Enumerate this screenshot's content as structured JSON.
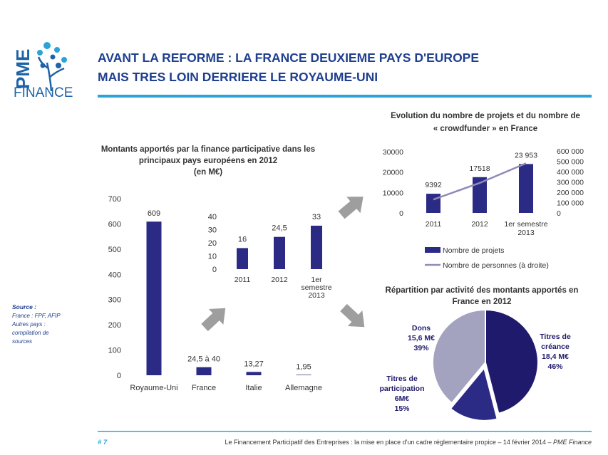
{
  "logo": {
    "line1": "PME",
    "line2": "FINANCE"
  },
  "title": {
    "line1": "AVANT LA REFORME : LA FRANCE DEUXIEME PAYS D'EUROPE",
    "line2": "MAIS TRES LOIN DERRIERE LE ROYAUME-UNI"
  },
  "source": {
    "label": "Source :",
    "lines": [
      "France : FPF, AFIP",
      "Autres pays :",
      "compilation de",
      "sources"
    ]
  },
  "footer": {
    "page": "# 7",
    "text": "Le Financement Participatif des Entreprises : la mise en place d'un cadre réglementaire propice – 14 février 2014 – ",
    "brand": "PME Finance"
  },
  "colors": {
    "accent": "#2aa3d8",
    "title": "#1f3f8f",
    "bar": "#2b2a85",
    "line": "#8f8bb8",
    "pie_dark": "#1f1a6b",
    "pie_mid": "#2b2a85",
    "pie_light": "#a3a2bf",
    "arrow": "#9e9e9e"
  },
  "chart_data": [
    {
      "type": "bar",
      "title_lines": [
        "Montants apportés par la finance participative dans les",
        "principaux pays européens en 2012",
        "(en M€)"
      ],
      "categories": [
        "Royaume-Uni",
        "France",
        "Italie",
        "Allemagne"
      ],
      "values": [
        609,
        32,
        13.27,
        1.95
      ],
      "data_labels": [
        "609",
        "24,5 à 40",
        "13,27",
        "1,95"
      ],
      "y_ticks": [
        "700",
        "600",
        "500",
        "400",
        "300",
        "200",
        "100",
        "0"
      ],
      "ylim": [
        0,
        700
      ]
    },
    {
      "type": "bar",
      "title_lines": [],
      "categories": [
        [
          "2011"
        ],
        [
          "2012"
        ],
        [
          "1er",
          "semestre",
          "2013"
        ]
      ],
      "values": [
        16,
        24.5,
        33
      ],
      "data_labels": [
        "16",
        "24,5",
        "33"
      ],
      "y_ticks": [
        "40",
        "30",
        "20",
        "10",
        "0"
      ],
      "ylim": [
        0,
        40
      ]
    },
    {
      "type": "bar+line",
      "title_lines": [
        "Evolution du nombre de projets et du nombre de",
        "« crowdfunder » en France"
      ],
      "categories": [
        [
          "2011"
        ],
        [
          "2012"
        ],
        [
          "1er semestre",
          "2013"
        ]
      ],
      "series": [
        {
          "name": "Nombre de projets",
          "axis": "left",
          "values": [
            9392,
            17518,
            23953
          ],
          "data_labels": [
            "9392",
            "17518",
            "23 953"
          ]
        },
        {
          "name": "Nombre de personnes (à droite)",
          "axis": "right",
          "values": [
            130000,
            290000,
            480000
          ]
        }
      ],
      "y_ticks_left": [
        "30000",
        "20000",
        "10000",
        "0"
      ],
      "ylim_left": [
        0,
        30000
      ],
      "y_ticks_right": [
        "600 000",
        "500 000",
        "400 000",
        "300 000",
        "200 000",
        "100 000",
        "0"
      ],
      "ylim_right": [
        0,
        600000
      ]
    },
    {
      "type": "pie",
      "title_lines": [
        "Répartition par activité des montants apportés en",
        "France en 2012"
      ],
      "slices": [
        {
          "label_lines": [
            "Titres de",
            "créance",
            "18,4 M€",
            "46%"
          ],
          "value": 46
        },
        {
          "label_lines": [
            "Titres de",
            "participation",
            "6M€",
            "15%"
          ],
          "value": 15
        },
        {
          "label_lines": [
            "Dons",
            "15,6 M€",
            "39%"
          ],
          "value": 39
        }
      ]
    }
  ]
}
